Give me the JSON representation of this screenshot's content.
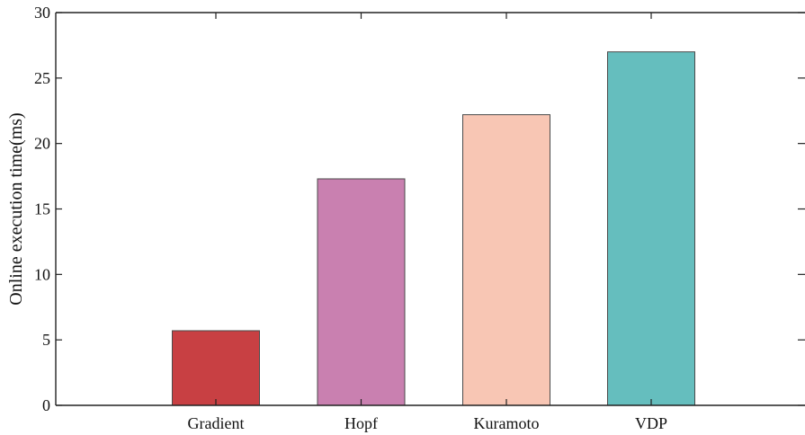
{
  "chart_data": {
    "type": "bar",
    "title": "",
    "xlabel": "",
    "ylabel": "Online execution time(ms)",
    "categories": [
      "Gradient",
      "Hopf",
      "Kuramoto",
      "VDP"
    ],
    "values": [
      5.7,
      17.3,
      22.2,
      27.0
    ],
    "bar_colors": [
      "#c84043",
      "#c980b0",
      "#f8c6b4",
      "#65bebe"
    ],
    "ylim": [
      0,
      30
    ],
    "yticks": [
      0,
      5,
      10,
      15,
      20,
      25,
      30
    ],
    "grid": false,
    "legend": false
  }
}
